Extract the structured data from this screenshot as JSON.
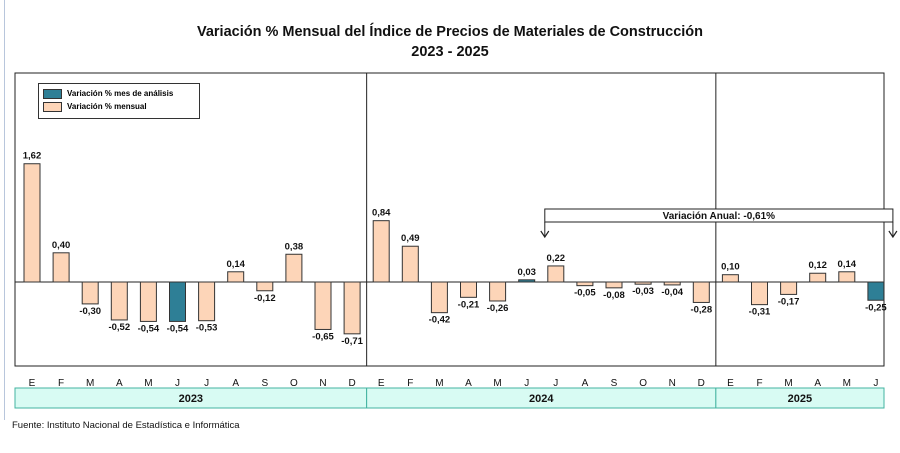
{
  "title": "Variación % Mensual del Índice de Precios de Materiales de Construcción",
  "subtitle": "2023 - 2025",
  "legend": {
    "highlight_label": "Variación % mes de análisis",
    "monthly_label": "Variación % mensual"
  },
  "annotation": {
    "label": "Variación Anual: -0,61%"
  },
  "source": "Fuente: Instituto  Nacional de Estadística  e Informática",
  "colors": {
    "bar_fill": "#fdd5b8",
    "highlight_fill": "#2e7f96",
    "bar_stroke": "#333333",
    "year_band": "#d8fbf3",
    "year_band_border": "#43b3a0"
  },
  "chart_data": {
    "type": "bar",
    "title": "Variación % Mensual del Índice de Precios de Materiales de Construcción",
    "subtitle": "2023 - 2025",
    "xlabel": "",
    "ylabel": "",
    "grid": false,
    "ylim": [
      -1.0,
      2.1
    ],
    "legend_position": "top-left",
    "years": [
      {
        "label": "2023",
        "months": [
          "E",
          "F",
          "M",
          "A",
          "M",
          "J",
          "J",
          "A",
          "S",
          "O",
          "N",
          "D"
        ],
        "values": [
          1.62,
          0.4,
          -0.3,
          -0.52,
          -0.54,
          -0.54,
          -0.53,
          0.14,
          -0.12,
          0.38,
          -0.65,
          -0.71
        ],
        "labels": [
          "1,62",
          "0,40",
          "-0,30",
          "-0,52",
          "-0,54",
          "-0,54",
          "-0,53",
          "0,14",
          "-0,12",
          "0,38",
          "-0,65",
          "-0,71"
        ],
        "highlight": [
          false,
          false,
          false,
          false,
          false,
          true,
          false,
          false,
          false,
          false,
          false,
          false
        ]
      },
      {
        "label": "2024",
        "months": [
          "E",
          "F",
          "M",
          "A",
          "M",
          "J",
          "J",
          "A",
          "S",
          "O",
          "N",
          "D"
        ],
        "values": [
          0.84,
          0.49,
          -0.42,
          -0.21,
          -0.26,
          0.03,
          0.22,
          -0.05,
          -0.08,
          -0.03,
          -0.04,
          -0.28
        ],
        "labels": [
          "0,84",
          "0,49",
          "-0,42",
          "-0,21",
          "-0,26",
          "0,03",
          "0,22",
          "-0,05",
          "-0,08",
          "-0,03",
          "-0,04",
          "-0,28"
        ],
        "highlight": [
          false,
          false,
          false,
          false,
          false,
          true,
          false,
          false,
          false,
          false,
          false,
          false
        ]
      },
      {
        "label": "2025",
        "months": [
          "E",
          "F",
          "M",
          "A",
          "M",
          "J"
        ],
        "values": [
          0.1,
          -0.31,
          -0.17,
          0.12,
          0.14,
          -0.25
        ],
        "labels": [
          "0,10",
          "-0,31",
          "-0,17",
          "0,12",
          "0,14",
          "-0,25"
        ],
        "highlight": [
          false,
          false,
          false,
          false,
          false,
          true
        ]
      }
    ]
  }
}
